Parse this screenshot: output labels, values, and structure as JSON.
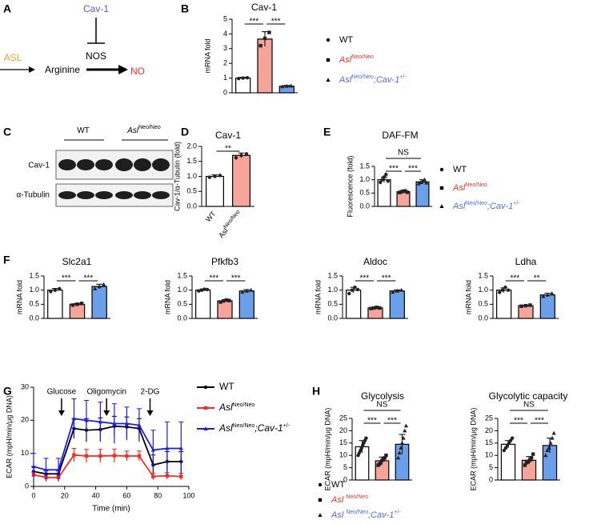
{
  "figure": {
    "panel_labels": [
      "A",
      "B",
      "C",
      "D",
      "E",
      "F",
      "G",
      "H"
    ]
  },
  "diagram": {
    "inhibitor": "Cav-1",
    "enzyme": "ASL",
    "substrate": "Arginine",
    "synthase": "NOS",
    "product": "NO"
  },
  "blot": {
    "groups": [
      [
        {
          "text": "WT"
        }
      ],
      [
        {
          "text": "Asl",
          "style": "italic"
        },
        {
          "text": "Neo/Neo",
          "style": "sup"
        }
      ]
    ],
    "rows": [
      "Cav-1",
      "α-Tubulin"
    ]
  },
  "chart_data": [
    {
      "type": "bar",
      "title": "Cav-1",
      "ylabel": "mRNA fold",
      "ylim": [
        0,
        5
      ],
      "yticks": [
        0,
        1,
        2,
        3,
        4,
        5
      ],
      "legend": true,
      "series": [
        {
          "name": [
            {
              "text": "WT"
            }
          ],
          "color": "#ffffff",
          "text_color": "#000000",
          "marker": "circle",
          "values": [
            1.0
          ],
          "errors": [
            0.05
          ],
          "points": [
            0.97,
            1.0,
            1.02
          ]
        },
        {
          "name": [
            {
              "text": "Asl",
              "style": "italic"
            },
            {
              "text": "Neo/Neo",
              "style": "sup"
            }
          ],
          "color": "#f7a59b",
          "text_color": "#e8332a",
          "marker": "square",
          "values": [
            3.65
          ],
          "errors": [
            0.5
          ],
          "points": [
            3.2,
            3.7,
            4.1
          ]
        },
        {
          "name": [
            {
              "text": "Asl",
              "style": "italic"
            },
            {
              "text": "Neo/Neo",
              "style": "sup"
            },
            {
              "text": ";Cav-1",
              "style": "italic"
            },
            {
              "text": "+/-",
              "style": "sup"
            }
          ],
          "color": "#6aa0ea",
          "text_color": "#4f6be0",
          "marker": "triangle",
          "values": [
            0.45
          ],
          "errors": [
            0.05
          ],
          "points": [
            0.42,
            0.45,
            0.47
          ]
        }
      ],
      "brackets": [
        {
          "from": 0,
          "to": 1,
          "level": 0,
          "label": "***"
        },
        {
          "from": 1,
          "to": 2,
          "level": 0,
          "label": "***"
        }
      ]
    },
    {
      "type": "bar",
      "title": "Cav-1",
      "ylabel": "Cav-1/α-Tubulin (fold)",
      "ylim": [
        0,
        2
      ],
      "yticks": [
        {
          "value": 0,
          "label": "0.0"
        },
        {
          "value": 0.5,
          "label": "0.5"
        },
        {
          "value": 1,
          "label": "1.0"
        },
        {
          "value": 1.5,
          "label": "1.5"
        },
        {
          "value": 2,
          "label": "2.0"
        }
      ],
      "categories": [
        [
          {
            "text": "WT"
          }
        ],
        [
          {
            "text": "Asl"
          },
          {
            "text": "Neo/Neo",
            "style": "sup"
          }
        ]
      ],
      "values": [
        1.0,
        1.7
      ],
      "errors": [
        0.05,
        0.08
      ],
      "colors": [
        "#ffffff",
        "#f7a59b"
      ],
      "points": [
        [
          0.97,
          1.0,
          1.03
        ],
        [
          1.62,
          1.7,
          1.75
        ]
      ],
      "brackets": [
        {
          "from": 0,
          "to": 1,
          "level": 0,
          "label": "**"
        }
      ]
    },
    {
      "type": "bar",
      "title": "DAF-FM",
      "ylabel": "Fluorescence (fold)",
      "ylim": [
        0,
        1.5
      ],
      "legend": true,
      "yticks": [
        {
          "value": 0,
          "label": "0.0"
        },
        {
          "value": 0.5,
          "label": "0.5"
        },
        {
          "value": 1,
          "label": "1.0"
        },
        {
          "value": 1.5,
          "label": "1.5"
        }
      ],
      "series": [
        {
          "name": [
            {
              "text": "WT"
            }
          ],
          "color": "#ffffff",
          "text_color": "#000000",
          "marker": "circle",
          "values": [
            1.0
          ],
          "errors": [
            0.1
          ],
          "points": [
            0.9,
            1.0,
            1.1,
            1.2,
            0.95
          ]
        },
        {
          "name": [
            {
              "text": "Asl",
              "style": "italic"
            },
            {
              "text": "Neo/Neo",
              "style": "sup"
            }
          ],
          "color": "#f7a59b",
          "text_color": "#e8332a",
          "marker": "square",
          "values": [
            0.55
          ],
          "errors": [
            0.03
          ],
          "points": [
            0.52,
            0.55,
            0.57,
            0.58,
            0.53
          ]
        },
        {
          "name": [
            {
              "text": "Asl",
              "style": "italic"
            },
            {
              "text": "Neo/Neo",
              "style": "sup"
            },
            {
              "text": ";Cav-1",
              "style": "italic"
            },
            {
              "text": "+/-",
              "style": "sup"
            }
          ],
          "color": "#6aa0ea",
          "text_color": "#4f6be0",
          "marker": "triangle",
          "values": [
            0.92
          ],
          "errors": [
            0.08
          ],
          "points": [
            0.85,
            0.9,
            0.95,
            1.0,
            0.88
          ]
        }
      ],
      "brackets": [
        {
          "from": 0,
          "to": 1,
          "level": 0,
          "label": "***"
        },
        {
          "from": 1,
          "to": 2,
          "level": 0,
          "label": "***"
        },
        {
          "from": 0,
          "to": 2,
          "level": 1,
          "label": "NS"
        }
      ]
    },
    {
      "type": "bar",
      "title": "Slc2a1",
      "ylabel": "mRNA fold",
      "ylim": [
        0,
        1.5
      ],
      "yticks": [
        {
          "value": 0,
          "label": "0.0"
        },
        {
          "value": 0.5,
          "label": "0.5"
        },
        {
          "value": 1,
          "label": "1.0"
        },
        {
          "value": 1.5,
          "label": "1.5"
        }
      ],
      "series": [
        {
          "color": "#ffffff",
          "marker": "circle",
          "values": [
            1.0
          ],
          "errors": [
            0.06
          ],
          "points": [
            0.95,
            1.0,
            1.05
          ]
        },
        {
          "color": "#f7a59b",
          "marker": "square",
          "values": [
            0.5
          ],
          "errors": [
            0.03
          ],
          "points": [
            0.47,
            0.5,
            0.53
          ]
        },
        {
          "color": "#6aa0ea",
          "marker": "triangle",
          "values": [
            1.13
          ],
          "errors": [
            0.08
          ],
          "points": [
            1.05,
            1.13,
            1.2
          ]
        }
      ],
      "brackets": [
        {
          "from": 0,
          "to": 1,
          "level": 0,
          "label": "***"
        },
        {
          "from": 1,
          "to": 2,
          "level": 0,
          "label": "***"
        }
      ]
    },
    {
      "type": "bar",
      "title": "Pfkfb3",
      "ylabel": "mRNA fold",
      "ylim": [
        0,
        1.5
      ],
      "yticks": [
        {
          "value": 0,
          "label": "0.0"
        },
        {
          "value": 0.5,
          "label": "0.5"
        },
        {
          "value": 1,
          "label": "1.0"
        },
        {
          "value": 1.5,
          "label": "1.5"
        }
      ],
      "series": [
        {
          "color": "#ffffff",
          "marker": "circle",
          "values": [
            1.0
          ],
          "errors": [
            0.04
          ],
          "points": [
            0.97,
            1.0,
            1.03,
            1.02
          ]
        },
        {
          "color": "#f7a59b",
          "marker": "square",
          "values": [
            0.62
          ],
          "errors": [
            0.04
          ],
          "points": [
            0.58,
            0.62,
            0.65,
            0.63
          ]
        },
        {
          "color": "#6aa0ea",
          "marker": "triangle",
          "values": [
            0.97
          ],
          "errors": [
            0.05
          ],
          "points": [
            0.93,
            0.97,
            1.0
          ]
        }
      ],
      "brackets": [
        {
          "from": 0,
          "to": 1,
          "level": 0,
          "label": "***"
        },
        {
          "from": 1,
          "to": 2,
          "level": 0,
          "label": "***"
        }
      ]
    },
    {
      "type": "bar",
      "title": "Aldoc",
      "ylabel": "mRNA fold",
      "ylim": [
        0,
        1.5
      ],
      "yticks": [
        {
          "value": 0,
          "label": "0.0"
        },
        {
          "value": 0.5,
          "label": "0.5"
        },
        {
          "value": 1,
          "label": "1.0"
        },
        {
          "value": 1.5,
          "label": "1.5"
        }
      ],
      "series": [
        {
          "color": "#ffffff",
          "marker": "circle",
          "values": [
            1.0
          ],
          "errors": [
            0.1
          ],
          "points": [
            0.88,
            1.0,
            1.1,
            1.02
          ]
        },
        {
          "color": "#f7a59b",
          "marker": "square",
          "values": [
            0.37
          ],
          "errors": [
            0.02
          ],
          "points": [
            0.35,
            0.37,
            0.39,
            0.37
          ]
        },
        {
          "color": "#6aa0ea",
          "marker": "triangle",
          "values": [
            0.97
          ],
          "errors": [
            0.04
          ],
          "points": [
            0.93,
            0.97,
            1.0
          ]
        }
      ],
      "brackets": [
        {
          "from": 0,
          "to": 1,
          "level": 0,
          "label": "***"
        },
        {
          "from": 1,
          "to": 2,
          "level": 0,
          "label": "***"
        }
      ]
    },
    {
      "type": "bar",
      "title": "Ldha",
      "ylabel": "mRNA fold",
      "ylim": [
        0,
        1.5
      ],
      "yticks": [
        {
          "value": 0,
          "label": "0.0"
        },
        {
          "value": 0.5,
          "label": "0.5"
        },
        {
          "value": 1,
          "label": "1.0"
        },
        {
          "value": 1.5,
          "label": "1.5"
        }
      ],
      "series": [
        {
          "color": "#ffffff",
          "marker": "circle",
          "values": [
            1.0
          ],
          "errors": [
            0.08
          ],
          "points": [
            0.92,
            1.0,
            1.1,
            1.0
          ]
        },
        {
          "color": "#f7a59b",
          "marker": "square",
          "values": [
            0.45
          ],
          "errors": [
            0.02
          ],
          "points": [
            0.43,
            0.45,
            0.47
          ]
        },
        {
          "color": "#6aa0ea",
          "marker": "triangle",
          "values": [
            0.83
          ],
          "errors": [
            0.06
          ],
          "points": [
            0.78,
            0.83,
            0.88
          ]
        }
      ],
      "brackets": [
        {
          "from": 0,
          "to": 1,
          "level": 0,
          "label": "***"
        },
        {
          "from": 1,
          "to": 2,
          "level": 0,
          "label": "**"
        }
      ]
    },
    {
      "type": "line",
      "xlabel": "Time (min)",
      "ylabel": "ECAR (mpH/min/μg DNA)",
      "xlim": [
        0,
        100
      ],
      "ylim": [
        0,
        30
      ],
      "xticks": [
        0,
        20,
        40,
        60,
        80,
        100
      ],
      "yticks": [
        0,
        10,
        20,
        30
      ],
      "legend": true,
      "x": [
        0,
        8,
        16,
        26,
        34,
        43,
        52,
        60,
        68,
        77,
        86,
        95
      ],
      "series": [
        {
          "name": [
            {
              "text": "WT"
            }
          ],
          "color": "#000000",
          "text_color": "#000000",
          "marker": "circle",
          "values": [
            4.5,
            3.8,
            3.8,
            17.5,
            17,
            17.2,
            18.2,
            18,
            17.5,
            6.5,
            7.5,
            7.5
          ],
          "errors": [
            1.5,
            1,
            1,
            3,
            3.5,
            3.5,
            3,
            3,
            3,
            3,
            3,
            3
          ]
        },
        {
          "name": [
            {
              "text": "Asl",
              "style": "italic"
            },
            {
              "text": "Neo/Neo",
              "style": "sup"
            }
          ],
          "color": "#ff2a1f",
          "text_color": "#000000",
          "marker": "square",
          "values": [
            3.5,
            2.7,
            2.7,
            9.5,
            9.2,
            9.2,
            9.3,
            9.2,
            9.2,
            3,
            3.2,
            3
          ],
          "errors": [
            0.8,
            0.5,
            0.5,
            2,
            2,
            2,
            2,
            1.5,
            1.5,
            1,
            1,
            1
          ]
        },
        {
          "name": [
            {
              "text": "Asl",
              "style": "italic"
            },
            {
              "text": "Neo/Neo",
              "style": "sup"
            },
            {
              "text": ";Cav-1",
              "style": "italic"
            },
            {
              "text": "+/-",
              "style": "sup"
            }
          ],
          "color": "#1a1aff",
          "text_color": "#000000",
          "marker": "triangle",
          "values": [
            6,
            5,
            5,
            20.5,
            20,
            19.5,
            19,
            19,
            18.5,
            11,
            11.5,
            11.5
          ],
          "errors": [
            4,
            3.5,
            3.5,
            6,
            6,
            6,
            6,
            5,
            5,
            6,
            8,
            8
          ]
        }
      ],
      "annotations": [
        {
          "x": 18,
          "label": "Glucose"
        },
        {
          "x": 47,
          "label": "Oligomycin"
        },
        {
          "x": 75,
          "label": "2-DG"
        }
      ]
    },
    {
      "type": "bar",
      "title": "Glycolysis",
      "ylabel": "ECAR (mpH/min/μg DNA)",
      "ylim": [
        0,
        25
      ],
      "yticks": [
        0,
        5,
        10,
        15,
        20,
        25
      ],
      "legend": true,
      "series": [
        {
          "name": [
            {
              "text": "WT"
            }
          ],
          "color": "#ffffff",
          "text_color": "#000000",
          "marker": "circle",
          "values": [
            13.5
          ],
          "errors": [
            2.5
          ],
          "points": [
            10,
            11,
            12,
            13,
            14,
            15,
            16,
            17
          ]
        },
        {
          "name": [
            {
              "text": "Asl ",
              "style": "italic"
            },
            {
              "text": "Neo/Neo",
              "style": "sup"
            }
          ],
          "color": "#f7a59b",
          "text_color": "#e8332a",
          "marker": "square",
          "values": [
            7.8
          ],
          "errors": [
            1.5
          ],
          "points": [
            6,
            6.5,
            7,
            8,
            8.5,
            9,
            10
          ]
        },
        {
          "name": [
            {
              "text": "Asl ",
              "style": "italic"
            },
            {
              "text": "Neo/Neo",
              "style": "sup"
            },
            {
              "text": ";Cav-1",
              "style": "italic"
            },
            {
              "text": "+/-",
              "style": "sup"
            }
          ],
          "color": "#6aa0ea",
          "text_color": "#4f6be0",
          "marker": "triangle",
          "values": [
            14.5
          ],
          "errors": [
            4
          ],
          "points": [
            9,
            11,
            13,
            15,
            17,
            20,
            22
          ]
        }
      ],
      "brackets": [
        {
          "from": 0,
          "to": 1,
          "level": 0,
          "label": "***"
        },
        {
          "from": 1,
          "to": 2,
          "level": 0,
          "label": "***"
        },
        {
          "from": 0,
          "to": 2,
          "level": 1,
          "label": "NS"
        }
      ]
    },
    {
      "type": "bar",
      "title": "Glycolytic capacity",
      "ylabel": "ECAR (mpH/min/μg DNA)",
      "ylim": [
        0,
        25
      ],
      "yticks": [
        0,
        5,
        10,
        15,
        20,
        25
      ],
      "series": [
        {
          "color": "#ffffff",
          "marker": "circle",
          "values": [
            14.5
          ],
          "errors": [
            1.5
          ],
          "points": [
            12,
            13,
            14,
            15,
            16,
            17
          ]
        },
        {
          "color": "#f7a59b",
          "marker": "square",
          "values": [
            8
          ],
          "errors": [
            1.5
          ],
          "points": [
            6,
            7,
            7.5,
            8,
            9,
            10.5
          ]
        },
        {
          "color": "#6aa0ea",
          "marker": "triangle",
          "values": [
            14
          ],
          "errors": [
            3
          ],
          "points": [
            10,
            12,
            13,
            15,
            17,
            19
          ]
        }
      ],
      "brackets": [
        {
          "from": 0,
          "to": 1,
          "level": 0,
          "label": "***"
        },
        {
          "from": 1,
          "to": 2,
          "level": 0,
          "label": "***"
        },
        {
          "from": 0,
          "to": 2,
          "level": 1,
          "label": "NS"
        }
      ]
    }
  ]
}
